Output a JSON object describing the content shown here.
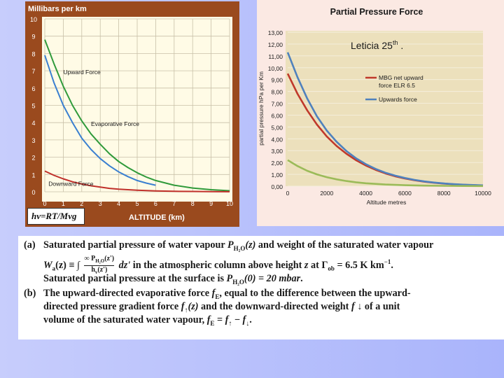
{
  "chart_data": [
    {
      "type": "line",
      "ylabel": "Millibars per km",
      "xlabel": "ALTITUDE (km)",
      "xlim": [
        0,
        10
      ],
      "ylim": [
        0,
        10
      ],
      "x_ticks": [
        "0",
        "1",
        "2",
        "3",
        "4",
        "5",
        "6",
        "7",
        "8",
        "9",
        "10"
      ],
      "y_ticks": [
        "0",
        "1",
        "2",
        "3",
        "4",
        "5",
        "6",
        "7",
        "8",
        "9",
        "10"
      ],
      "grid": true,
      "formula": "hv=RT/Mvg",
      "series": [
        {
          "name": "Upward Force",
          "color": "#3a7fd0",
          "x": [
            0,
            0.5,
            1,
            1.5,
            2,
            2.5,
            3,
            3.5,
            4,
            4.5,
            5,
            5.5,
            6
          ],
          "values": [
            7.9,
            6.3,
            5.0,
            4.0,
            3.1,
            2.45,
            1.92,
            1.5,
            1.15,
            0.88,
            0.65,
            0.5,
            0.38
          ]
        },
        {
          "name": "Evaporative Force",
          "color": "#2f9a3a",
          "x": [
            0,
            0.5,
            1,
            1.5,
            2,
            2.5,
            3,
            3.5,
            4,
            4.5,
            5,
            5.5,
            6,
            7,
            8,
            9,
            10
          ],
          "values": [
            8.8,
            7.4,
            6.1,
            5.0,
            4.1,
            3.35,
            2.75,
            2.2,
            1.75,
            1.4,
            1.1,
            0.85,
            0.65,
            0.38,
            0.22,
            0.12,
            0.06
          ]
        },
        {
          "name": "Downward Force",
          "color": "#c0302a",
          "x": [
            0,
            0.5,
            1,
            1.5,
            2,
            2.5,
            3,
            3.5,
            4,
            5,
            6,
            7,
            8,
            9,
            10
          ],
          "values": [
            1.2,
            0.95,
            0.75,
            0.58,
            0.45,
            0.35,
            0.27,
            0.2,
            0.15,
            0.09,
            0.05,
            0.03,
            0.02,
            0.01,
            0.005
          ]
        }
      ]
    },
    {
      "type": "line",
      "title": "Partial Pressure Force",
      "ylabel": "partial pressure hPa per Km",
      "xlabel": "Altitude metres",
      "xlim": [
        0,
        10000
      ],
      "ylim": [
        0,
        13
      ],
      "x_ticks": [
        "0",
        "2000",
        "4000",
        "6000",
        "8000",
        "10000"
      ],
      "y_ticks": [
        "0,00",
        "1,00",
        "2,00",
        "3,00",
        "4,00",
        "5,00",
        "6,00",
        "7,00",
        "8,00",
        "9,00",
        "10,00",
        "11,00",
        "12,00",
        "13,00"
      ],
      "grid": true,
      "annotation": "Leticia 25",
      "annotation_sup": "th",
      "annotation_suffix": " .",
      "legend_placement": "top-right",
      "series": [
        {
          "name": "MBG net upward force ELR 6.5",
          "name_line1": "MBG net upward",
          "name_line2": "force ELR 6.5",
          "color": "#c0392b",
          "x": [
            0,
            500,
            1000,
            1500,
            2000,
            2500,
            3000,
            3500,
            4000,
            4500,
            5000,
            5500,
            6000,
            6500,
            7000,
            7500,
            8000,
            8500,
            9000,
            9500,
            10000
          ],
          "values": [
            9.5,
            7.8,
            6.4,
            5.2,
            4.2,
            3.4,
            2.75,
            2.2,
            1.75,
            1.38,
            1.08,
            0.84,
            0.65,
            0.5,
            0.38,
            0.29,
            0.22,
            0.16,
            0.12,
            0.09,
            0.06
          ]
        },
        {
          "name": "Upwards force",
          "color": "#4f81bd",
          "x": [
            0,
            500,
            1000,
            1500,
            2000,
            2500,
            3000,
            3500,
            4000,
            4500,
            5000,
            5500,
            6000,
            6500,
            7000,
            7500,
            8000,
            8500,
            9000,
            9500,
            10000
          ],
          "values": [
            11.3,
            9.2,
            7.4,
            5.9,
            4.7,
            3.75,
            2.98,
            2.36,
            1.86,
            1.46,
            1.14,
            0.89,
            0.69,
            0.53,
            0.4,
            0.31,
            0.23,
            0.17,
            0.13,
            0.1,
            0.07
          ]
        },
        {
          "name": "",
          "color": "#9bbb59",
          "x": [
            0,
            500,
            1000,
            1500,
            2000,
            2500,
            3000,
            3500,
            4000,
            5000,
            6000,
            7000,
            8000,
            9000,
            10000
          ],
          "values": [
            2.2,
            1.7,
            1.3,
            1.0,
            0.76,
            0.58,
            0.44,
            0.33,
            0.25,
            0.14,
            0.08,
            0.05,
            0.03,
            0.02,
            0.01
          ]
        }
      ]
    }
  ],
  "caption": {
    "a_tag": "(a)",
    "a1_pre": "Saturated partial pressure of water vapour ",
    "a1_math": "P",
    "a1_sub": "H₂O",
    "a1_math2": "(z)",
    "a1_post": " and weight of the saturated water vapour",
    "a2_lhs": "W",
    "a2_lhs_sub": "a",
    "a2_eq": "(z) ≡ ∫",
    "a2_frac_num": "∞ P",
    "a2_frac_den": "h",
    "a2_num_sub": "H₂O",
    "a2_dz": "dz'",
    "a2_post": " in the atmospheric column above height ",
    "a2_z": "z",
    "a2_at": " at ",
    "a2_gamma": "Γ",
    "a2_gamma_sub": "ob",
    "a2_value": " = 6.5 K km",
    "a2_exp": "−1",
    "a2_end": ".",
    "a3_pre": "Saturated partial pressure at the surface is ",
    "a3_math": "P",
    "a3_sub": "H₂O",
    "a3_val": "(0) = 20 mbar",
    "a3_end": ".",
    "b_tag": "(b)",
    "b1_pre": "The upward-directed evaporative force ",
    "b1_math": "f",
    "b1_sub": "E",
    "b1_post": ", equal to the difference between the upward-",
    "b2_pre": "directed pressure gradient force ",
    "b2_math": "f",
    "b2_arrow": "↑",
    "b2_math2": "(z)",
    "b2_mid": " and the downward-directed weight ",
    "b2_f": "f",
    "b2_down": " ↓",
    "b2_post": "  of a unit",
    "b3_pre": "volume of the saturated water vapour, ",
    "b3_f": "f",
    "b3_sub": "E",
    "b3_eq": " = ",
    "b3_f1": "f",
    "b3_up": "↑",
    "b3_minus": " − ",
    "b3_f2": "f",
    "b3_dn": "↓",
    "b3_end": "."
  }
}
